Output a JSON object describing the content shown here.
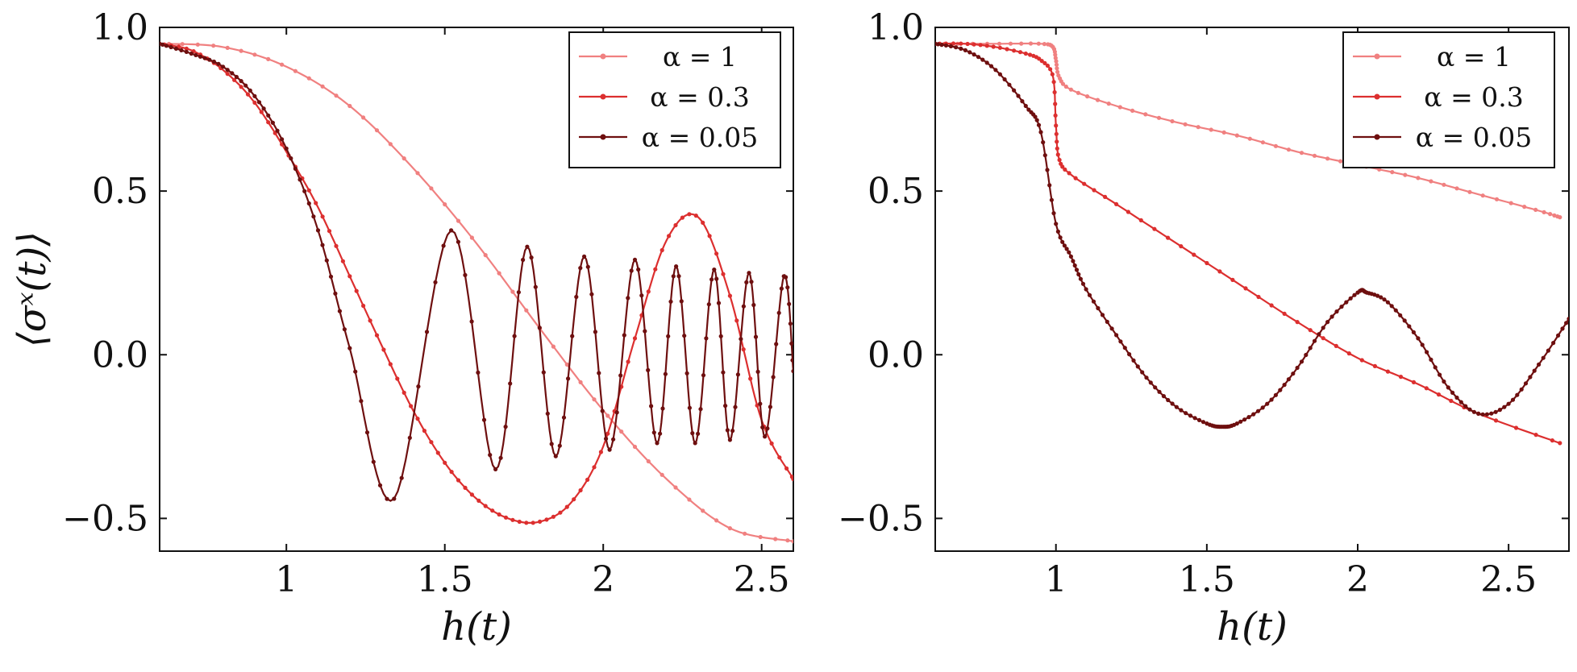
{
  "chart_data": [
    {
      "type": "line",
      "xlabel": "h(t)",
      "ylabel": "⟨σˣ(t)⟩",
      "xlim": [
        0.6,
        2.6
      ],
      "ylim": [
        -0.6,
        1.0
      ],
      "xticks": [
        1,
        1.5,
        2,
        2.5
      ],
      "xtick_labels": [
        "1",
        "1.5",
        "2",
        "2.5"
      ],
      "yticks": [
        1.0,
        0.5,
        0.0,
        -0.5
      ],
      "ytick_labels": [
        "1.0",
        "0.5",
        "0.0",
        "−0.5"
      ],
      "grid": false,
      "legend_position": "top-right",
      "series": [
        {
          "name": "α = 1",
          "color": "#f08080",
          "x": [
            0.6,
            0.8,
            1.0,
            1.2,
            1.4,
            1.6,
            1.8,
            2.0,
            2.2,
            2.4,
            2.6
          ],
          "y": [
            0.95,
            0.94,
            0.88,
            0.76,
            0.57,
            0.34,
            0.08,
            -0.17,
            -0.38,
            -0.53,
            -0.57
          ]
        },
        {
          "name": "α = 0.3",
          "color": "#dc2f2f",
          "x": [
            0.6,
            0.7,
            0.8,
            0.9,
            1.0,
            1.1,
            1.2,
            1.3,
            1.4,
            1.5,
            1.6,
            1.7,
            1.8,
            1.9,
            2.0,
            2.1,
            2.2,
            2.3,
            2.4,
            2.5,
            2.6
          ],
          "y": [
            0.95,
            0.93,
            0.87,
            0.77,
            0.62,
            0.45,
            0.24,
            0.03,
            -0.17,
            -0.33,
            -0.44,
            -0.5,
            -0.51,
            -0.45,
            -0.28,
            0.05,
            0.35,
            0.42,
            0.18,
            -0.2,
            -0.38
          ]
        },
        {
          "name": "α = 0.05",
          "color": "#6e0f0f",
          "x": [
            0.6,
            0.7,
            0.8,
            0.9,
            1.0,
            1.1,
            1.2,
            1.34,
            1.52,
            1.66,
            1.76,
            1.85,
            1.94,
            2.02,
            2.1,
            2.17,
            2.23,
            2.29,
            2.35,
            2.4,
            2.46,
            2.51,
            2.57,
            2.6
          ],
          "y": [
            0.95,
            0.92,
            0.88,
            0.79,
            0.63,
            0.38,
            0.02,
            -0.44,
            0.38,
            -0.35,
            0.33,
            -0.31,
            0.3,
            -0.29,
            0.29,
            -0.27,
            0.27,
            -0.27,
            0.26,
            -0.26,
            0.25,
            -0.25,
            0.24,
            -0.05
          ]
        }
      ]
    },
    {
      "type": "line",
      "xlabel": "h(t)",
      "ylabel": "",
      "xlim": [
        0.6,
        2.7
      ],
      "ylim": [
        -0.6,
        1.0
      ],
      "xticks": [
        1,
        1.5,
        2,
        2.5
      ],
      "xtick_labels": [
        "1",
        "1.5",
        "2",
        "2.5"
      ],
      "yticks": [
        1.0,
        0.5,
        0.0,
        -0.5
      ],
      "ytick_labels": [
        "1.0",
        "0.5",
        "0.0",
        "−0.5"
      ],
      "grid": false,
      "legend_position": "top-right",
      "series": [
        {
          "name": "α = 1",
          "color": "#f08080",
          "x": [
            0.6,
            0.8,
            0.95,
            0.99,
            1.0,
            1.01,
            1.05,
            1.2,
            1.4,
            1.6,
            1.8,
            2.0,
            2.2,
            2.4,
            2.6,
            2.67
          ],
          "y": [
            0.95,
            0.95,
            0.95,
            0.94,
            0.9,
            0.85,
            0.81,
            0.76,
            0.71,
            0.67,
            0.62,
            0.58,
            0.54,
            0.49,
            0.44,
            0.42
          ]
        },
        {
          "name": "α = 0.3",
          "color": "#dc2f2f",
          "x": [
            0.6,
            0.7,
            0.8,
            0.9,
            0.95,
            0.99,
            1.0,
            1.01,
            1.05,
            1.2,
            1.4,
            1.6,
            1.8,
            2.0,
            2.2,
            2.4,
            2.67
          ],
          "y": [
            0.95,
            0.95,
            0.94,
            0.92,
            0.9,
            0.85,
            0.7,
            0.6,
            0.55,
            0.46,
            0.34,
            0.22,
            0.1,
            -0.01,
            -0.09,
            -0.18,
            -0.27
          ]
        },
        {
          "name": "α = 0.05",
          "color": "#6e0f0f",
          "x": [
            0.6,
            0.7,
            0.8,
            0.9,
            0.95,
            1.0,
            1.05,
            1.1,
            1.2,
            1.3,
            1.4,
            1.5,
            1.55,
            1.6,
            1.7,
            1.8,
            1.9,
            2.0,
            2.03,
            2.1,
            2.2,
            2.3,
            2.4,
            2.5,
            2.6,
            2.7
          ],
          "y": [
            0.95,
            0.93,
            0.87,
            0.76,
            0.68,
            0.4,
            0.3,
            0.2,
            0.06,
            -0.07,
            -0.16,
            -0.21,
            -0.22,
            -0.21,
            -0.15,
            -0.04,
            0.1,
            0.19,
            0.19,
            0.16,
            0.05,
            -0.1,
            -0.18,
            -0.15,
            -0.03,
            0.11
          ]
        }
      ]
    }
  ]
}
